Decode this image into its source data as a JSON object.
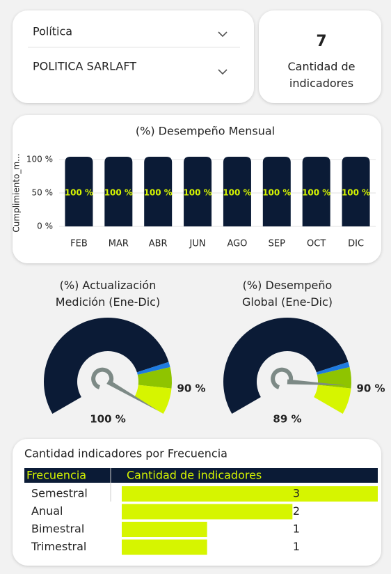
{
  "slicers": [
    {
      "label": "Política"
    },
    {
      "label": "POLITICA SARLAFT"
    }
  ],
  "card": {
    "value": 7,
    "label": "Cantidad de indicadores"
  },
  "chart_data": [
    {
      "type": "bar",
      "title": "(%) Desempeño Mensual",
      "y_label": "Cumplimiento_m...",
      "categories": [
        "FEB",
        "MAR",
        "ABR",
        "JUN",
        "AGO",
        "SEP",
        "OCT",
        "DIC"
      ],
      "values": [
        100,
        100,
        100,
        100,
        100,
        100,
        100,
        100
      ],
      "value_labels": [
        "100 %",
        "100 %",
        "100 %",
        "100 %",
        "100 %",
        "100 %",
        "100 %",
        "100 %"
      ],
      "color": "#0b1b36",
      "label_color": "#d6f500",
      "ylim": [
        0,
        100
      ],
      "yticks": [
        {
          "value": 0,
          "label": "0 %"
        },
        {
          "value": 50,
          "label": "50 %"
        },
        {
          "value": 100,
          "label": "100 %"
        }
      ],
      "grid": true
    },
    {
      "type": "gauge",
      "title": "(%) Actualización Medición (Ene-Dic)",
      "value": 100,
      "value_label": "100 %",
      "target": 90,
      "target_label": "90 %",
      "ylim": [
        0,
        100
      ],
      "ranges": [
        {
          "to": 80,
          "color": "#0b1b36"
        },
        {
          "to": 82,
          "color": "#1f7be0"
        },
        {
          "to": 90,
          "color": "#8fc400"
        },
        {
          "to": 100,
          "color": "#d6f500"
        }
      ]
    },
    {
      "type": "gauge",
      "title": "(%) Desempeño Global (Ene-Dic)",
      "value": 89,
      "value_label": "89 %",
      "target": 90,
      "target_label": "90 %",
      "ylim": [
        0,
        100
      ],
      "ranges": [
        {
          "to": 80,
          "color": "#0b1b36"
        },
        {
          "to": 82,
          "color": "#1f7be0"
        },
        {
          "to": 90,
          "color": "#8fc400"
        },
        {
          "to": 100,
          "color": "#d6f500"
        }
      ]
    },
    {
      "type": "table_bar",
      "title": "Cantidad indicadores por Frecuencia",
      "columns": [
        "Frecuencia",
        "Cantidad de indicadores"
      ],
      "categories": [
        "Semestral",
        "Anual",
        "Bimestral",
        "Trimestral"
      ],
      "values": [
        3,
        2,
        1,
        1
      ],
      "color": "#d6f500",
      "header_color": "#0b1b36",
      "xlim": [
        0,
        3
      ]
    }
  ]
}
